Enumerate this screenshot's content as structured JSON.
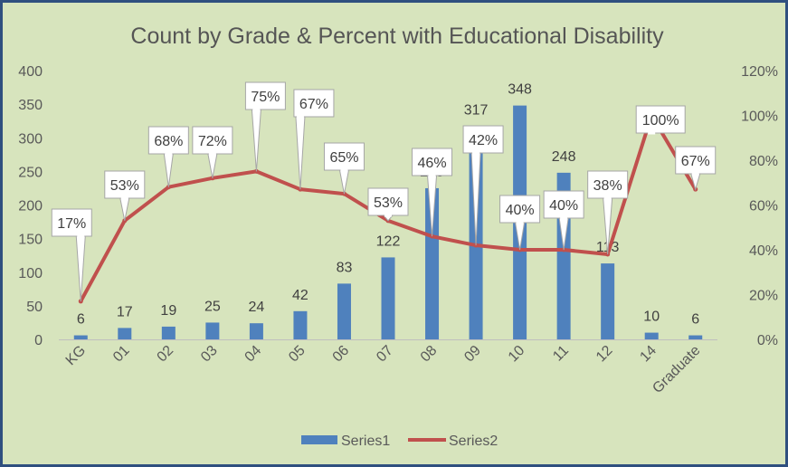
{
  "chart_data": {
    "type": "bar+line",
    "title": "Count by Grade & Percent with Educational Disability",
    "categories": [
      "KG",
      "01",
      "02",
      "03",
      "04",
      "05",
      "06",
      "07",
      "08",
      "09",
      "10",
      "11",
      "12",
      "14",
      "Graduate"
    ],
    "series": [
      {
        "name": "Series1",
        "type": "bar",
        "axis": "left",
        "color": "#4f81bd",
        "values": [
          6,
          17,
          19,
          25,
          24,
          42,
          83,
          122,
          225,
          317,
          348,
          248,
          113,
          10,
          6
        ]
      },
      {
        "name": "Series2",
        "type": "line",
        "axis": "right",
        "color": "#c0504d",
        "values": [
          0.17,
          0.53,
          0.68,
          0.72,
          0.75,
          0.67,
          0.65,
          0.53,
          0.46,
          0.42,
          0.4,
          0.4,
          0.38,
          1.0,
          0.67
        ],
        "labels": [
          "17%",
          "53%",
          "68%",
          "72%",
          "75%",
          "67%",
          "65%",
          "53%",
          "46%",
          "42%",
          "40%",
          "40%",
          "38%",
          "100%",
          "67%"
        ]
      }
    ],
    "y_left": {
      "min": 0,
      "max": 400,
      "step": 50,
      "ticks": [
        "0",
        "50",
        "100",
        "150",
        "200",
        "250",
        "300",
        "350",
        "400"
      ]
    },
    "y_right": {
      "min": 0,
      "max": 1.2,
      "step": 0.2,
      "ticks": [
        "0%",
        "20%",
        "40%",
        "60%",
        "80%",
        "100%",
        "120%"
      ]
    },
    "grid": false,
    "legend": {
      "position": "bottom",
      "items": [
        "Series1",
        "Series2"
      ]
    }
  },
  "colors": {
    "background": "#d7e4bd",
    "border": "#2f4f7f"
  }
}
